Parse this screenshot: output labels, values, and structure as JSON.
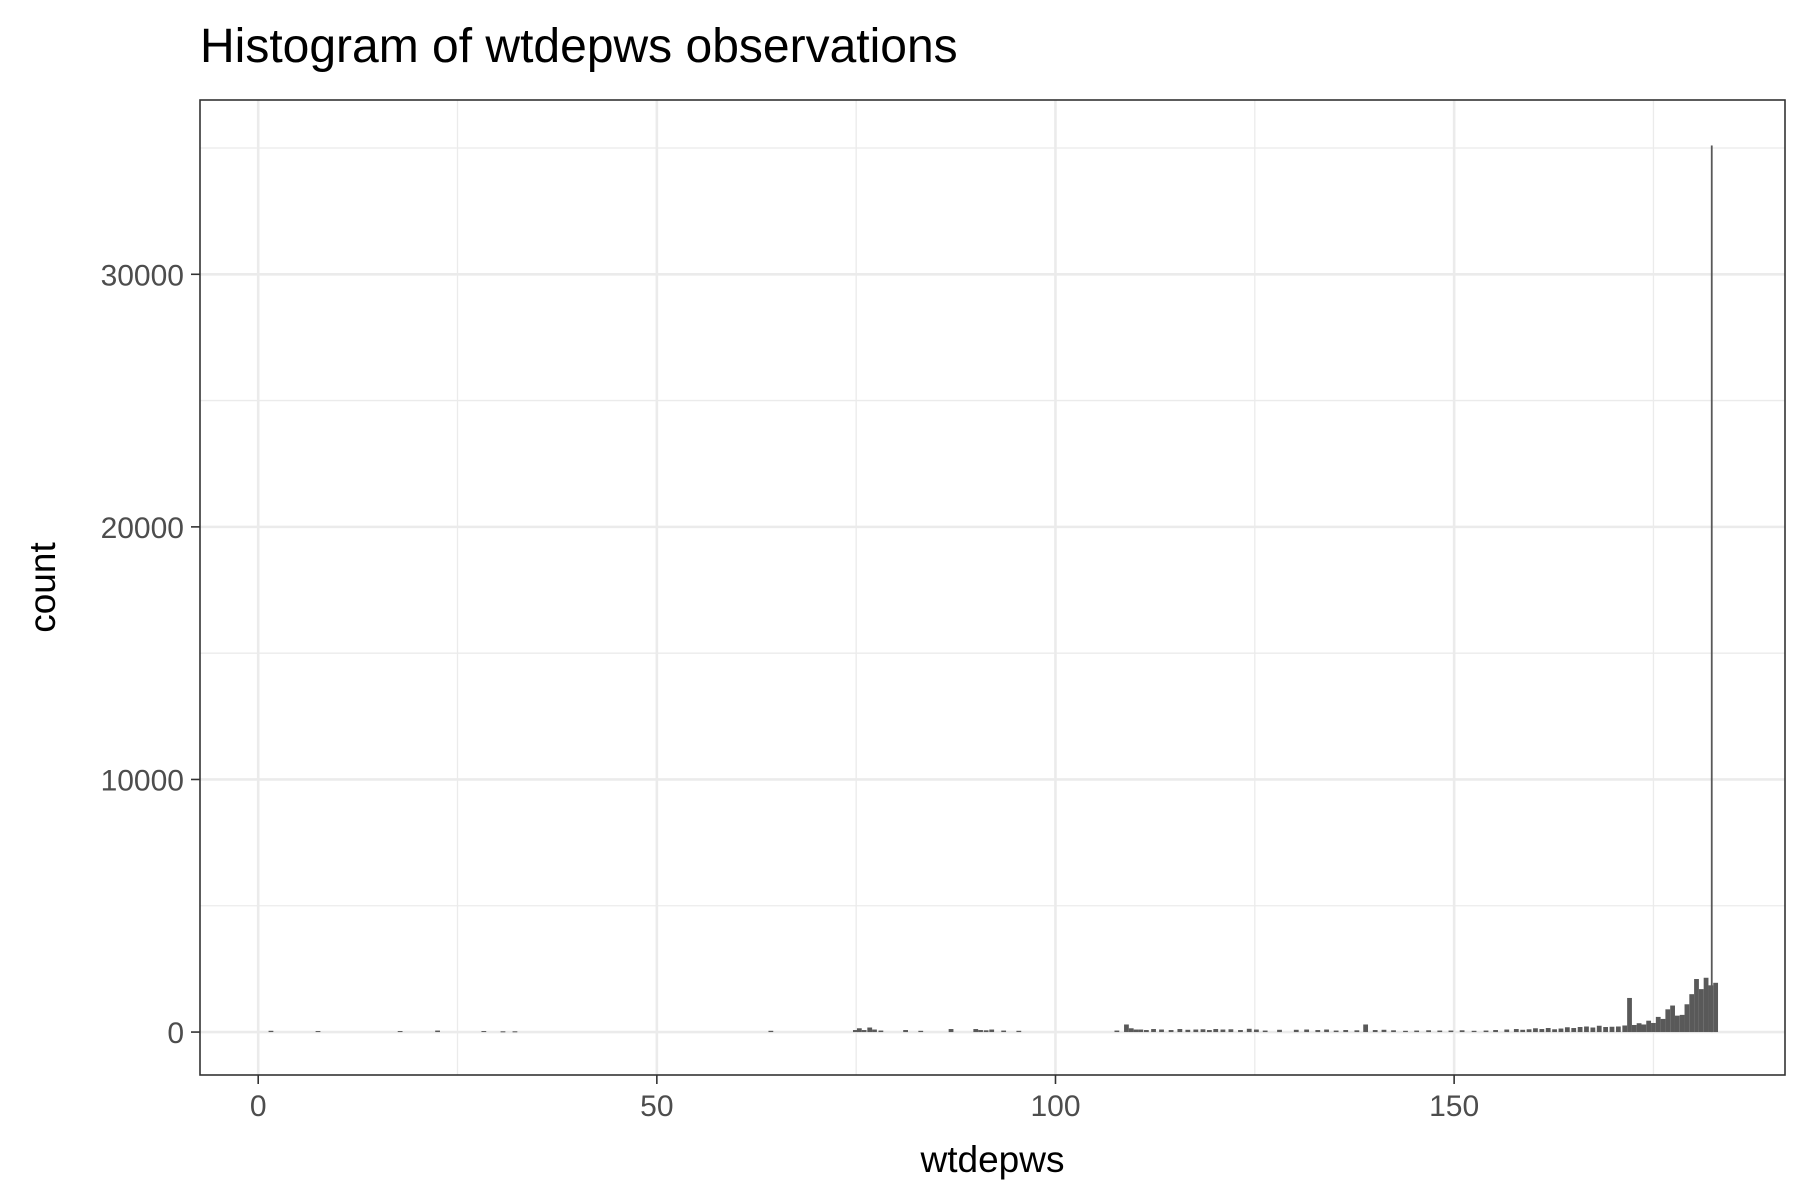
{
  "chart_data": {
    "type": "bar",
    "title": "Histogram of wtdepws observations",
    "xlabel": "wtdepws",
    "ylabel": "count",
    "xlim": [
      -7.3,
      191.5
    ],
    "ylim": [
      -1700,
      36900
    ],
    "x_ticks": [
      0,
      50,
      100,
      150
    ],
    "y_ticks": [
      0,
      10000,
      20000,
      30000
    ],
    "grid": true,
    "bar_color": "#595959",
    "bin_width": 0.6,
    "x": [
      1.6,
      7.5,
      17.8,
      22.5,
      28.3,
      30.7,
      32.2,
      64.3,
      74.9,
      75.4,
      76.0,
      76.7,
      77.3,
      78.1,
      81.2,
      83.1,
      86.9,
      90.0,
      90.6,
      91.3,
      92.0,
      93.5,
      95.4,
      107.7,
      108.9,
      109.5,
      110.1,
      110.7,
      111.4,
      112.3,
      113.3,
      114.5,
      115.6,
      116.6,
      117.6,
      118.5,
      119.3,
      120.1,
      121.0,
      122.0,
      123.2,
      124.3,
      125.2,
      126.3,
      128.1,
      130.2,
      131.5,
      132.9,
      134.0,
      135.2,
      136.4,
      137.8,
      138.9,
      140.1,
      141.2,
      142.4,
      143.9,
      145.3,
      146.8,
      148.2,
      149.6,
      151.0,
      152.5,
      154.0,
      155.2,
      156.6,
      157.8,
      158.6,
      159.4,
      160.2,
      161.0,
      161.8,
      162.6,
      163.4,
      164.2,
      165.0,
      165.8,
      166.6,
      167.4,
      168.2,
      169.0,
      169.8,
      170.6,
      171.4,
      172.0,
      172.6,
      173.2,
      173.8,
      174.4,
      175.0,
      175.6,
      176.2,
      176.8,
      177.4,
      178.0,
      178.6,
      179.2,
      179.8,
      180.4,
      181.0,
      181.6,
      182.2,
      182.8
    ],
    "values": [
      50,
      40,
      40,
      60,
      40,
      30,
      30,
      50,
      80,
      150,
      80,
      180,
      100,
      60,
      80,
      50,
      120,
      120,
      80,
      70,
      100,
      60,
      50,
      60,
      300,
      150,
      100,
      100,
      80,
      120,
      100,
      80,
      120,
      90,
      100,
      110,
      80,
      120,
      100,
      110,
      80,
      130,
      100,
      60,
      90,
      90,
      100,
      80,
      100,
      60,
      80,
      70,
      300,
      80,
      90,
      70,
      50,
      60,
      70,
      60,
      60,
      70,
      50,
      60,
      80,
      100,
      120,
      90,
      110,
      150,
      120,
      160,
      110,
      140,
      190,
      160,
      200,
      220,
      180,
      250,
      200,
      210,
      220,
      260,
      1350,
      280,
      350,
      300,
      450,
      360,
      600,
      520,
      900,
      1050,
      650,
      680,
      1100,
      1500,
      2100,
      1700,
      2150,
      1850,
      1950
    ],
    "spike": {
      "x": 182.3,
      "value": 35100
    }
  }
}
